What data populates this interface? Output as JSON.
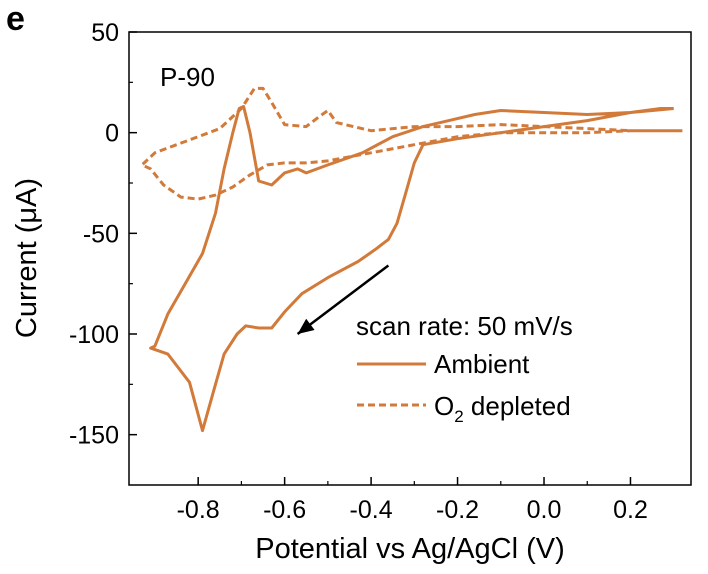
{
  "panel_label": "e",
  "chart_data": {
    "type": "line",
    "sample_label": "P-90",
    "xlabel": "Potential vs Ag/AgCl (V)",
    "ylabel": "Current (μA)",
    "xlim": [
      -0.96,
      0.34
    ],
    "ylim": [
      -175,
      50
    ],
    "xticks": [
      -0.8,
      -0.6,
      -0.4,
      -0.2,
      0.0,
      0.2
    ],
    "xtick_labels": [
      "-0.8",
      "-0.6",
      "-0.4",
      "-0.2",
      "0.0",
      "0.2"
    ],
    "yticks": [
      -150,
      -100,
      -50,
      0,
      50
    ],
    "ytick_labels": [
      "-150",
      "-100",
      "-50",
      "0",
      "50"
    ],
    "grid": false,
    "legend_title": "scan rate: 50 mV/s",
    "legend_position": "bottom-right",
    "annotation": "arrow indicating scan direction",
    "arrow": {
      "from": [
        -0.36,
        -66
      ],
      "to": [
        -0.57,
        -100
      ]
    },
    "series": [
      {
        "name": "Ambient",
        "style": "solid",
        "color": "#d27a3a",
        "x": [
          0.3,
          0.2,
          0.1,
          0.0,
          -0.1,
          -0.2,
          -0.28,
          -0.3,
          -0.32,
          -0.34,
          -0.36,
          -0.39,
          -0.43,
          -0.5,
          -0.56,
          -0.6,
          -0.63,
          -0.66,
          -0.69,
          -0.71,
          -0.74,
          -0.76,
          -0.79,
          -0.82,
          -0.87,
          -0.91,
          -0.9,
          -0.87,
          -0.83,
          -0.79,
          -0.76,
          -0.74,
          -0.72,
          -0.705,
          -0.695,
          -0.68,
          -0.66,
          -0.63,
          -0.6,
          -0.57,
          -0.55,
          -0.5,
          -0.42,
          -0.35,
          -0.28,
          -0.22,
          -0.16,
          -0.1,
          0.0,
          0.1,
          0.2,
          0.27,
          0.3
        ],
        "y": [
          12,
          10,
          6,
          3,
          0,
          -3,
          -6,
          -15,
          -30,
          -45,
          -53,
          -58,
          -64,
          -72,
          -80,
          -89,
          -97,
          -97,
          -96,
          -100,
          -110,
          -125,
          -148,
          -124,
          -110,
          -107,
          -106,
          -90,
          -75,
          -60,
          -40,
          -18,
          0,
          12,
          13,
          0,
          -24,
          -26,
          -20,
          -18,
          -20,
          -16,
          -10,
          -2,
          3,
          6,
          9,
          11,
          10,
          9,
          10,
          12,
          12
        ]
      },
      {
        "name": "O2 depleted",
        "style": "dashed",
        "color": "#d27a3a",
        "x": [
          0.32,
          0.2,
          0.1,
          0.0,
          -0.1,
          -0.2,
          -0.3,
          -0.4,
          -0.48,
          -0.5,
          -0.52,
          -0.55,
          -0.6,
          -0.63,
          -0.65,
          -0.67,
          -0.7,
          -0.75,
          -0.8,
          -0.85,
          -0.9,
          -0.93,
          -0.91,
          -0.88,
          -0.84,
          -0.8,
          -0.76,
          -0.72,
          -0.68,
          -0.64,
          -0.6,
          -0.55,
          -0.5,
          -0.45,
          -0.4,
          -0.3,
          -0.2,
          -0.1,
          0.0,
          0.1,
          0.2,
          0.3,
          0.32
        ],
        "y": [
          1,
          1,
          2,
          3,
          4,
          3,
          3,
          1,
          5,
          11,
          8,
          3,
          4,
          15,
          22,
          22,
          12,
          2,
          -2,
          -6,
          -10,
          -16,
          -18,
          -26,
          -32,
          -33,
          -31,
          -27,
          -21,
          -16,
          -15,
          -15,
          -14,
          -12,
          -10,
          -6,
          -2,
          0,
          0,
          0,
          1,
          1,
          1
        ]
      }
    ]
  },
  "legend": {
    "title": "scan rate: 50 mV/s",
    "entries": [
      {
        "label": "Ambient",
        "style": "solid"
      },
      {
        "label_main": "O",
        "label_sub": "2",
        "label_rest": " depleted",
        "style": "dashed"
      }
    ]
  }
}
